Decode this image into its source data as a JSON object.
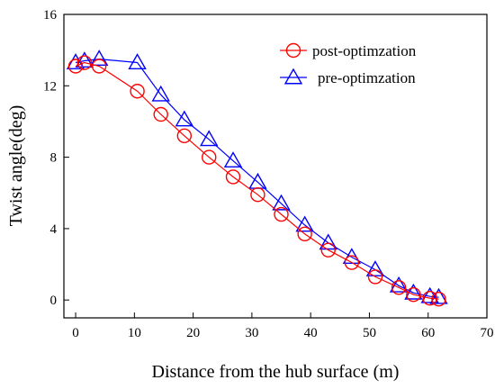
{
  "chart_data": {
    "type": "line",
    "xlabel": "Distance from the hub surface (m)",
    "ylabel": "Twist angle(deg)",
    "xlim": [
      -2,
      70
    ],
    "ylim": [
      -1,
      16
    ],
    "xticks": [
      0,
      10,
      20,
      30,
      40,
      50,
      60,
      70
    ],
    "yticks": [
      0,
      4,
      8,
      12,
      16
    ],
    "legend_position": "top-right",
    "grid": false,
    "series": [
      {
        "name": "post-optimzation",
        "color": "#ff0000",
        "marker": "circle",
        "x": [
          0,
          1.5,
          4,
          10.5,
          14.5,
          18.5,
          22.7,
          26.8,
          31,
          35,
          39,
          43,
          47,
          51,
          55,
          57.5,
          60.3,
          61.8
        ],
        "y": [
          13.1,
          13.3,
          13.1,
          11.7,
          10.4,
          9.2,
          8.0,
          6.9,
          5.9,
          4.8,
          3.7,
          2.8,
          2.1,
          1.3,
          0.7,
          0.3,
          0.1,
          0.05
        ]
      },
      {
        "name": "pre-optimzation",
        "color": "#0000ff",
        "marker": "triangle",
        "x": [
          0,
          1.5,
          4,
          10.5,
          14.5,
          18.5,
          22.7,
          26.8,
          31,
          35,
          39,
          43,
          47,
          51,
          55,
          57.5,
          60.3,
          61.8
        ],
        "y": [
          13.3,
          13.4,
          13.5,
          13.3,
          11.5,
          10.1,
          9.0,
          7.8,
          6.6,
          5.4,
          4.2,
          3.2,
          2.4,
          1.7,
          0.8,
          0.4,
          0.2,
          0.15
        ]
      }
    ]
  }
}
